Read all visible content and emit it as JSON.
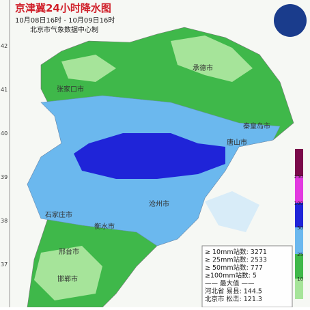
{
  "header": {
    "title": "京津冀24小时降水图",
    "time_range": "10月08日16时 - 10月09日16时",
    "producer": "北京市气象数据中心制"
  },
  "axis_labels": [
    "42",
    "41",
    "40",
    "39",
    "38",
    "37"
  ],
  "cities": [
    "承德市",
    "张家口市",
    "秦皇岛市",
    "唐山市",
    "沧州市",
    "石家庄市",
    "衡水市",
    "邢台市",
    "邯郸市"
  ],
  "legend": {
    "labels": [
      "250",
      "100",
      "50",
      "25",
      "10"
    ]
  },
  "stats": {
    "lines": [
      "≥ 10mm站数: 3271",
      "≥ 25mm站数: 2533",
      "≥ 50mm站数: 777",
      "≥100mm站数: 5",
      "—— 最大值 ——",
      "河北省 易县: 144.5",
      "北京市 松峦: 121.3"
    ]
  }
}
